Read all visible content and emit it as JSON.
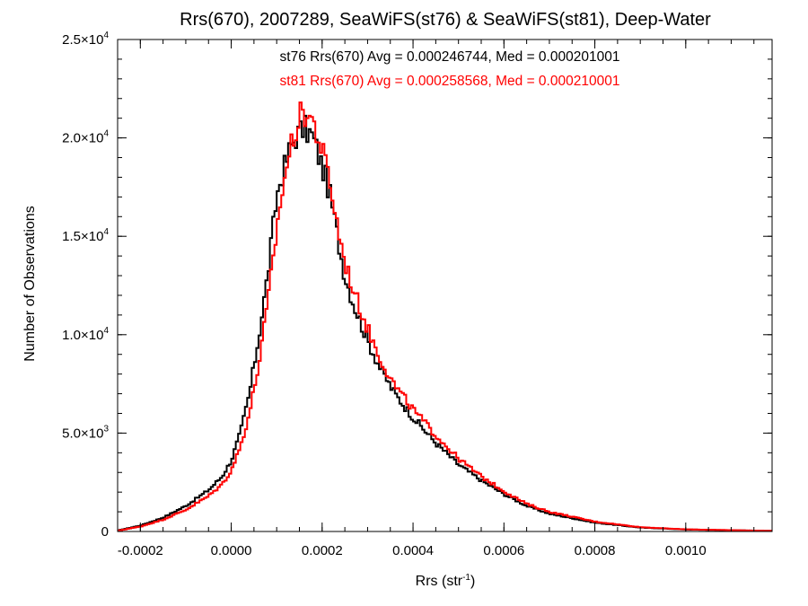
{
  "chart_data": {
    "type": "histogram",
    "title": "Rrs(670), 2007289, SeaWiFS(st76) & SeaWiFS(st81), Deep-Water",
    "xlabel": {
      "text": "Rrs (str",
      "superscript": "-1",
      "suffix": ")"
    },
    "ylabel": "Number of Observations",
    "xlim": [
      -0.00025,
      0.00119
    ],
    "ylim": [
      0,
      25000
    ],
    "bin_width": 5e-06,
    "x_ticks": [
      {
        "value": -0.0002,
        "label": "-0.0002"
      },
      {
        "value": 0.0,
        "label": "0.0000"
      },
      {
        "value": 0.0002,
        "label": "0.0002"
      },
      {
        "value": 0.0004,
        "label": "0.0004"
      },
      {
        "value": 0.0006,
        "label": "0.0006"
      },
      {
        "value": 0.0008,
        "label": "0.0008"
      },
      {
        "value": 0.001,
        "label": "0.0010"
      }
    ],
    "y_ticks": [
      {
        "value": 0,
        "mantissa": "0",
        "exponent": ""
      },
      {
        "value": 5000,
        "mantissa": "5.0×10",
        "exponent": "3"
      },
      {
        "value": 10000,
        "mantissa": "1.0×10",
        "exponent": "4"
      },
      {
        "value": 15000,
        "mantissa": "1.5×10",
        "exponent": "4"
      },
      {
        "value": 20000,
        "mantissa": "2.0×10",
        "exponent": "4"
      },
      {
        "value": 25000,
        "mantissa": "2.5×10",
        "exponent": "4"
      }
    ],
    "series": [
      {
        "name": "st76",
        "color": "#000000",
        "annotation": "st76 Rrs(670) Avg = 0.000246744, Med = 0.000201001",
        "x": [
          -0.00025,
          -0.0002,
          -0.00015,
          -0.0001,
          -5e-05,
          -2e-05,
          0.0,
          2e-05,
          4e-05,
          6e-05,
          8e-05,
          0.0001,
          0.00011,
          0.00012,
          0.00013,
          0.00014,
          0.00015,
          0.00016,
          0.00017,
          0.00018,
          0.00019,
          0.0002,
          0.00021,
          0.00022,
          0.00023,
          0.00024,
          0.00025,
          0.00027,
          0.0003,
          0.00033,
          0.00036,
          0.0004,
          0.00045,
          0.0005,
          0.00055,
          0.0006,
          0.00065,
          0.0007,
          0.0008,
          0.0009,
          0.001,
          0.00119
        ],
        "y": [
          50,
          300,
          700,
          1300,
          2100,
          2800,
          3600,
          5000,
          7000,
          9800,
          13000,
          17000,
          18000,
          18700,
          19500,
          20000,
          20300,
          20500,
          20300,
          20000,
          19300,
          18500,
          17800,
          16800,
          15500,
          14200,
          13000,
          11500,
          9700,
          8200,
          7000,
          5800,
          4500,
          3400,
          2600,
          1900,
          1300,
          900,
          450,
          200,
          100,
          30
        ]
      },
      {
        "name": "st81",
        "color": "#ff0000",
        "annotation": "st81 Rrs(670) Avg = 0.000258568, Med = 0.000210001",
        "x": [
          -0.00025,
          -0.0002,
          -0.00015,
          -0.0001,
          -5e-05,
          -2e-05,
          0.0,
          2e-05,
          4e-05,
          6e-05,
          8e-05,
          0.0001,
          0.00011,
          0.00012,
          0.00013,
          0.00014,
          0.00015,
          0.00016,
          0.00017,
          0.00018,
          0.00019,
          0.0002,
          0.00021,
          0.00022,
          0.00023,
          0.00024,
          0.00025,
          0.00027,
          0.0003,
          0.00033,
          0.00036,
          0.0004,
          0.00045,
          0.0005,
          0.00055,
          0.0006,
          0.00065,
          0.0007,
          0.0008,
          0.0009,
          0.001,
          0.00119
        ],
        "y": [
          40,
          250,
          600,
          1100,
          1800,
          2400,
          3100,
          4300,
          6000,
          8400,
          11500,
          15300,
          17000,
          18300,
          19400,
          20300,
          21000,
          21300,
          21200,
          20800,
          20100,
          19300,
          18500,
          17400,
          16000,
          14800,
          13700,
          12200,
          10300,
          8700,
          7400,
          6200,
          4900,
          3700,
          2800,
          2050,
          1400,
          1000,
          500,
          220,
          110,
          30
        ]
      }
    ]
  }
}
